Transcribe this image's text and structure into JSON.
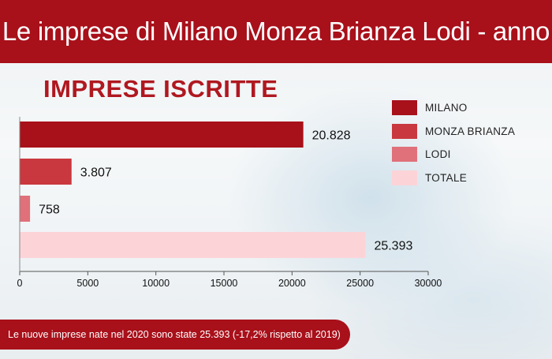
{
  "header": {
    "title": "Le imprese di Milano Monza Brianza Lodi - anno"
  },
  "chart_data": {
    "type": "bar",
    "orientation": "horizontal",
    "title": "IMPRESE ISCRITTE",
    "categories": [
      "MILANO",
      "MONZA BRIANZA",
      "LODI",
      "TOTALE"
    ],
    "values": [
      20828,
      3807,
      758,
      25393
    ],
    "value_labels": [
      "20.828",
      "3.807",
      "758",
      "25.393"
    ],
    "colors": [
      "#a8101a",
      "#c9383e",
      "#e0707a",
      "#fcd4d8"
    ],
    "xlim": [
      0,
      30000
    ],
    "xticks": [
      0,
      5000,
      10000,
      15000,
      20000,
      25000,
      30000
    ],
    "xlabel": "",
    "ylabel": "",
    "grid": false,
    "legend_position": "right"
  },
  "footer": {
    "note": "Le nuove imprese nate nel 2020 sono state  25.393 (-17,2% rispetto al 2019)"
  }
}
